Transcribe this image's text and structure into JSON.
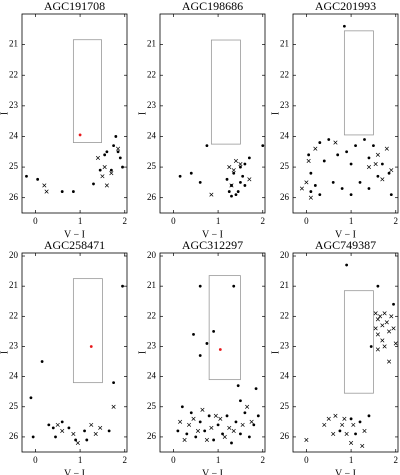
{
  "chart_data": [
    {
      "type": "scatter",
      "title": "AGC191708",
      "xlabel": "V − I",
      "ylabel": "I",
      "xlim": [
        -0.3,
        2.05
      ],
      "ylim": [
        26.5,
        20
      ],
      "xticks": [
        0,
        1,
        2
      ],
      "yticks": [
        21,
        22,
        23,
        24,
        25,
        26
      ],
      "box": {
        "x": [
          0.85,
          1.48
        ],
        "y": [
          20.84,
          24.2
        ],
        "color": "#999999"
      },
      "series": [
        {
          "marker": "dot",
          "color": "#000000",
          "x": [
            -0.2,
            0.05,
            0.6,
            0.85,
            1.3,
            1.45,
            1.6,
            1.75,
            1.85,
            1.9,
            1.95,
            1.7,
            1.8,
            1.55
          ],
          "y": [
            25.3,
            25.4,
            25.8,
            25.8,
            25.55,
            25.1,
            24.5,
            24.3,
            24.5,
            24.7,
            25.0,
            25.1,
            24.0,
            24.6
          ]
        },
        {
          "marker": "cross",
          "color": "#000000",
          "x": [
            0.2,
            0.25,
            1.4,
            1.5,
            1.6,
            1.7,
            1.55,
            1.85
          ],
          "y": [
            25.6,
            25.8,
            24.7,
            25.3,
            25.6,
            25.2,
            25.0,
            24.4
          ]
        },
        {
          "marker": "dot",
          "color": "#e8191c",
          "x": [
            1.0
          ],
          "y": [
            23.95
          ]
        }
      ]
    },
    {
      "type": "scatter",
      "title": "AGC198686",
      "xlabel": "V − I",
      "ylabel": "I",
      "xlim": [
        -0.3,
        2.05
      ],
      "ylim": [
        26.5,
        20
      ],
      "xticks": [
        0,
        1,
        2
      ],
      "yticks": [
        21,
        22,
        23,
        24,
        25,
        26
      ],
      "box": {
        "x": [
          0.85,
          1.5
        ],
        "y": [
          20.85,
          24.25
        ],
        "color": "#999999"
      },
      "series": [
        {
          "marker": "dot",
          "color": "#000000",
          "x": [
            0.15,
            0.6,
            0.75,
            0.4,
            1.2,
            1.3,
            1.35,
            1.45,
            1.5,
            1.4,
            1.3,
            1.55,
            1.6,
            1.25,
            1.5,
            1.6,
            2.0,
            1.7
          ],
          "y": [
            25.3,
            25.5,
            24.3,
            25.2,
            25.4,
            25.6,
            25.2,
            25.8,
            25.0,
            25.9,
            25.95,
            25.3,
            25.6,
            25.8,
            25.5,
            24.9,
            24.3,
            24.7
          ]
        },
        {
          "marker": "cross",
          "color": "#000000",
          "x": [
            0.85,
            1.25,
            1.4,
            1.35,
            1.5,
            1.7,
            1.3
          ],
          "y": [
            25.9,
            25.0,
            24.8,
            25.1,
            24.9,
            25.4,
            25.6
          ]
        }
      ]
    },
    {
      "type": "scatter",
      "title": "AGC201993",
      "xlabel": "V − I",
      "ylabel": "I",
      "xlim": [
        -0.3,
        2.05
      ],
      "ylim": [
        26.5,
        20
      ],
      "xticks": [
        0,
        1,
        2
      ],
      "yticks": [
        21,
        22,
        23,
        24,
        25,
        26
      ],
      "box": {
        "x": [
          0.85,
          1.5
        ],
        "y": [
          20.55,
          23.95
        ],
        "color": "#999999"
      },
      "series": [
        {
          "marker": "dot",
          "color": "#000000",
          "x": [
            0.85,
            0.05,
            0.1,
            0.3,
            0.5,
            0.7,
            0.9,
            1.1,
            1.3,
            1.5,
            1.7,
            0.2,
            0.6,
            0.8,
            1.0,
            1.2,
            1.4,
            1.6,
            1.85,
            1.9,
            0.4,
            1.0,
            0.1,
            0.3,
            1.4
          ],
          "y": [
            20.4,
            24.6,
            25.2,
            24.2,
            24.1,
            24.6,
            24.5,
            24.3,
            24.1,
            24.3,
            24.9,
            25.6,
            25.5,
            25.7,
            25.9,
            25.5,
            25.7,
            25.3,
            25.2,
            25.9,
            24.8,
            24.9,
            25.8,
            25.9,
            24.7
          ]
        },
        {
          "marker": "cross",
          "color": "#000000",
          "x": [
            -0.1,
            0.0,
            0.05,
            0.2,
            0.65,
            1.4,
            1.55,
            1.7,
            1.6,
            1.8,
            1.9,
            0.1
          ],
          "y": [
            25.7,
            25.5,
            24.8,
            24.4,
            24.2,
            25.0,
            24.9,
            25.4,
            24.6,
            24.4,
            25.1,
            26.0
          ]
        }
      ]
    },
    {
      "type": "scatter",
      "title": "AGC258471",
      "xlabel": "V − I",
      "ylabel": "I",
      "xlim": [
        -0.3,
        2.05
      ],
      "ylim": [
        26.5,
        19.9
      ],
      "xticks": [
        0,
        1,
        2
      ],
      "yticks": [
        20,
        21,
        22,
        23,
        24,
        25,
        26
      ],
      "box": {
        "x": [
          0.85,
          1.5
        ],
        "y": [
          20.75,
          24.2
        ],
        "color": "#999999"
      },
      "series": [
        {
          "marker": "dot",
          "color": "#000000",
          "x": [
            1.95,
            0.15,
            -0.1,
            1.75,
            0.3,
            0.4,
            0.45,
            -0.05,
            0.9,
            1.1,
            1.15,
            1.65,
            0.75,
            0.6
          ],
          "y": [
            21.0,
            23.5,
            24.7,
            24.2,
            25.6,
            25.7,
            26.0,
            26.0,
            26.1,
            25.8,
            26.1,
            25.8,
            25.7,
            25.5
          ]
        },
        {
          "marker": "cross",
          "color": "#000000",
          "x": [
            0.6,
            0.85,
            0.95,
            1.25,
            1.35,
            1.45,
            1.75,
            0.5
          ],
          "y": [
            25.8,
            25.9,
            26.2,
            25.6,
            25.9,
            25.7,
            25.0,
            25.6
          ]
        },
        {
          "marker": "dot",
          "color": "#e8191c",
          "x": [
            1.25
          ],
          "y": [
            23.0
          ]
        }
      ]
    },
    {
      "type": "scatter",
      "title": "AGC312297",
      "xlabel": "V − I",
      "ylabel": "I",
      "xlim": [
        -0.3,
        2.05
      ],
      "ylim": [
        26.5,
        19.9
      ],
      "xticks": [
        0,
        1,
        2
      ],
      "yticks": [
        20,
        21,
        22,
        23,
        24,
        25,
        26
      ],
      "box": {
        "x": [
          0.8,
          1.5
        ],
        "y": [
          20.65,
          24.1
        ],
        "color": "#999999"
      },
      "series": [
        {
          "marker": "dot",
          "color": "#000000",
          "x": [
            0.6,
            0.45,
            1.35,
            0.75,
            0.9,
            0.6,
            1.85,
            1.45,
            1.5,
            0.2,
            0.4,
            0.6,
            0.8,
            1.0,
            1.2,
            1.4,
            1.6,
            1.8,
            0.3,
            0.5,
            0.7,
            0.9,
            1.1,
            1.3,
            1.5,
            1.7,
            0.1,
            1.9
          ],
          "y": [
            21.0,
            22.6,
            21.0,
            22.9,
            22.5,
            23.3,
            24.4,
            24.3,
            24.8,
            25.0,
            25.2,
            25.5,
            25.3,
            25.6,
            25.3,
            25.5,
            25.2,
            25.6,
            25.9,
            26.0,
            25.8,
            26.1,
            25.9,
            26.2,
            25.9,
            26.0,
            25.8,
            25.3
          ]
        },
        {
          "marker": "cross",
          "color": "#000000",
          "x": [
            0.15,
            0.35,
            0.55,
            0.65,
            0.85,
            1.05,
            1.15,
            1.35,
            1.55,
            1.75,
            0.25,
            0.95,
            1.65,
            1.25,
            0.45,
            0.75
          ],
          "y": [
            25.5,
            25.6,
            25.8,
            25.1,
            25.7,
            25.4,
            26.0,
            25.8,
            25.6,
            25.5,
            26.1,
            25.3,
            25.0,
            25.7,
            25.4,
            26.1
          ]
        },
        {
          "marker": "dot",
          "color": "#e8191c",
          "x": [
            1.05
          ],
          "y": [
            23.1
          ]
        }
      ]
    },
    {
      "type": "scatter",
      "title": "AGC749387",
      "xlabel": "V − I",
      "ylabel": "I",
      "xlim": [
        -0.3,
        2.05
      ],
      "ylim": [
        26.5,
        19.9
      ],
      "xticks": [
        0,
        1,
        2
      ],
      "yticks": [
        20,
        21,
        22,
        23,
        24,
        25,
        26
      ],
      "box": {
        "x": [
          0.85,
          1.5
        ],
        "y": [
          21.15,
          24.55
        ],
        "color": "#999999"
      },
      "series": [
        {
          "marker": "dot",
          "color": "#000000",
          "x": [
            0.9,
            1.6,
            1.95,
            1.45,
            1.0,
            1.2,
            1.4,
            0.75,
            1.1
          ],
          "y": [
            20.3,
            21.0,
            21.6,
            23.0,
            25.4,
            25.5,
            25.3,
            25.8,
            25.9
          ]
        },
        {
          "marker": "cross",
          "color": "#000000",
          "x": [
            1.55,
            1.6,
            1.65,
            1.7,
            1.75,
            1.8,
            1.85,
            1.6,
            1.7,
            1.9,
            1.95,
            1.75,
            1.6,
            1.85,
            1.55,
            2.0,
            0.4,
            0.5,
            0.6,
            0.0,
            0.8,
            0.9,
            1.05,
            1.3,
            1.0,
            0.85,
            0.65,
            1.25
          ],
          "y": [
            21.9,
            22.1,
            22.0,
            22.3,
            21.9,
            22.2,
            22.5,
            22.6,
            22.8,
            22.0,
            22.4,
            23.0,
            23.1,
            23.5,
            22.4,
            22.9,
            25.6,
            25.4,
            25.9,
            26.1,
            25.6,
            25.9,
            25.6,
            25.8,
            26.2,
            25.4,
            25.3,
            26.3
          ]
        }
      ]
    }
  ]
}
